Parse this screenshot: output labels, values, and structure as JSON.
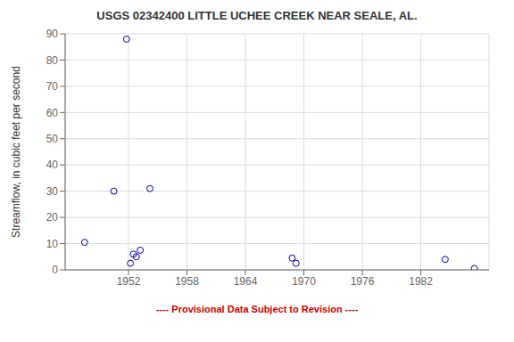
{
  "chart_data": {
    "type": "scatter",
    "title": "USGS 02342400 LITTLE UCHEE CREEK NEAR SEALE, AL.",
    "y_label": "Streamflow, in cubic feet per second",
    "x": [
      1947.5,
      1950.5,
      1951.8,
      1952.2,
      1952.5,
      1952.8,
      1953.2,
      1954.2,
      1968.8,
      1969.2,
      1984.5,
      1987.5
    ],
    "values": [
      10.5,
      30,
      88,
      2.5,
      6,
      5,
      7.5,
      31,
      4.5,
      2.5,
      4,
      0.5
    ],
    "xlim": [
      1945.5,
      1989
    ],
    "ylim": [
      0,
      90
    ],
    "xticks": [
      1952,
      1958,
      1964,
      1970,
      1976,
      1982
    ],
    "yticks": [
      0,
      10,
      20,
      30,
      40,
      50,
      60,
      70,
      80,
      90
    ],
    "color": "#0000BB",
    "marker": "circle",
    "grid": true,
    "annotations": [
      {
        "text": "---- Provisional Data Subject to Revision ----",
        "color": "#CC0000"
      }
    ]
  }
}
